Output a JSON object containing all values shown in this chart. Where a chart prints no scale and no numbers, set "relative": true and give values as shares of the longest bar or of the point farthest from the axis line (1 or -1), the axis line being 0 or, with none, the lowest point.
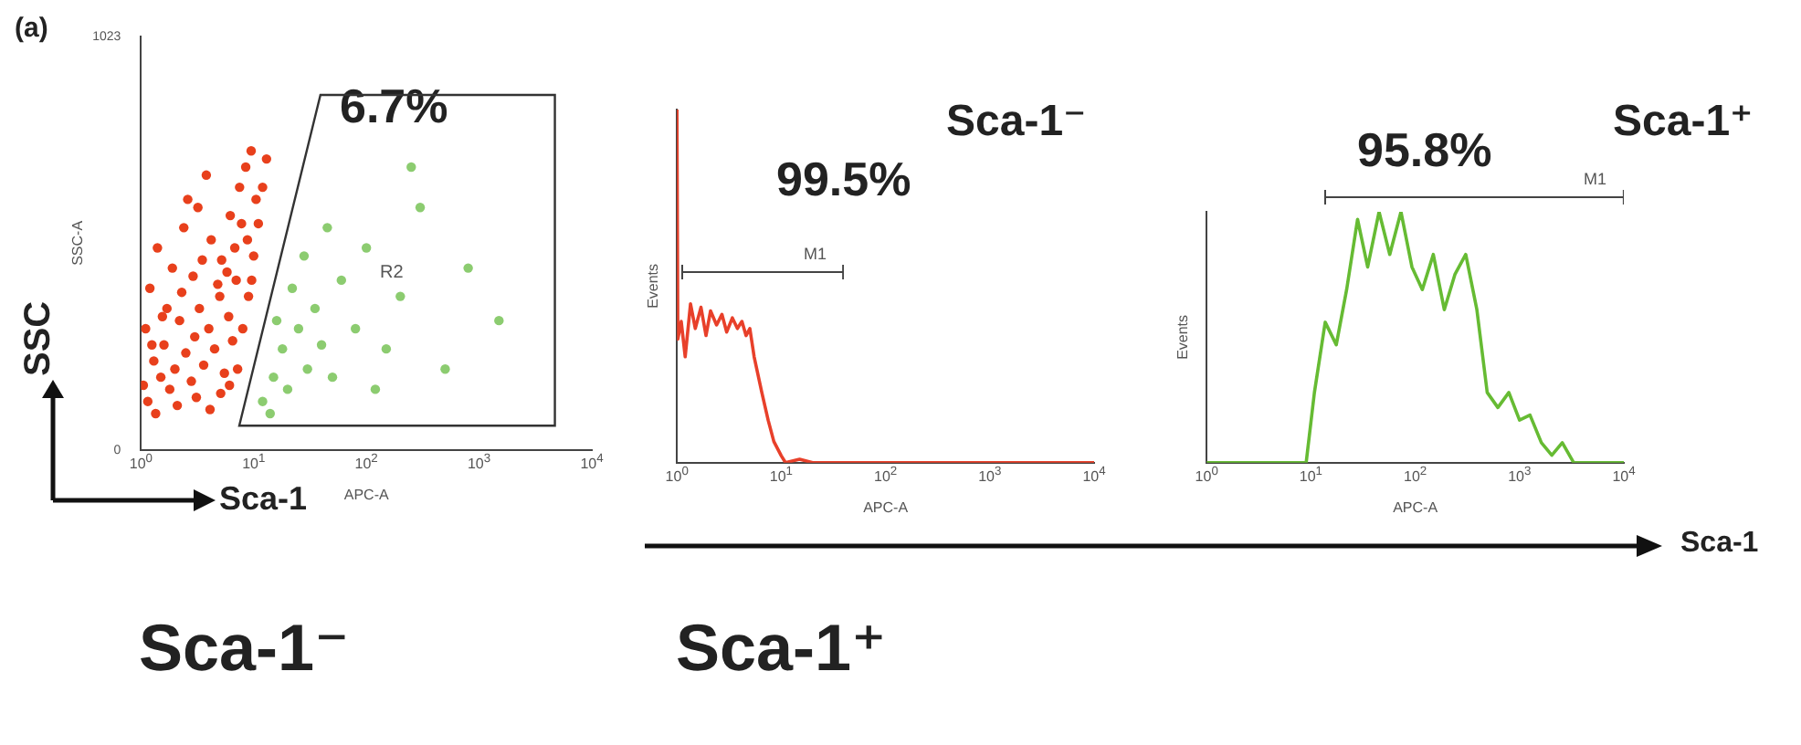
{
  "chart_data": [
    {
      "type": "scatter",
      "xlabel": "APC-A",
      "ylabel": "SSC-A",
      "log": "x",
      "xlim": [
        1,
        10000
      ],
      "ylim": [
        0,
        1023
      ],
      "xticks": [
        {
          "value": 1,
          "label": "10$^{0}$"
        },
        {
          "value": 10,
          "label": "10$^{1}$"
        },
        {
          "value": 100,
          "label": "10$^{2}$"
        },
        {
          "value": 1000,
          "label": "10$^{3}$"
        },
        {
          "value": 10000,
          "label": "10$^{4}$"
        }
      ],
      "yticks": [
        0,
        1023
      ],
      "grid": false,
      "legend": false,
      "marker": "circle",
      "annotations": [
        "(a)",
        "6.7%",
        "R2",
        "SSC",
        "Sca-1"
      ],
      "series": [
        {
          "color": "#e8401c",
          "x": [
            1.1,
            1.3,
            1.5,
            1.2,
            1.6,
            1.8,
            2,
            2.2,
            2.5,
            2.8,
            3,
            3.3,
            3.6,
            4,
            4.5,
            5,
            5.5,
            6,
            6.5,
            7,
            1.4,
            1.9,
            2.4,
            3.2,
            4.2,
            5.2,
            6.2,
            7.5,
            8.5,
            9.5,
            3.8,
            2.6,
            1.7,
            1.05,
            1.15,
            1.35,
            2.1,
            3.1,
            4.1,
            5.1,
            6.1,
            7.2,
            8,
            9,
            10,
            11,
            12,
            13,
            8.8,
            9.6,
            1.25,
            1.55,
            2.3,
            2.9,
            3.5,
            4.8,
            5.8,
            6.8,
            7.8,
            10.5
          ],
          "values": [
            300,
            220,
            180,
            400,
            260,
            150,
            200,
            320,
            240,
            170,
            280,
            350,
            210,
            300,
            250,
            380,
            190,
            330,
            270,
            420,
            500,
            450,
            550,
            600,
            520,
            470,
            580,
            650,
            700,
            740,
            680,
            620,
            350,
            160,
            120,
            90,
            110,
            130,
            100,
            140,
            160,
            200,
            300,
            380,
            480,
            560,
            650,
            720,
            520,
            420,
            260,
            330,
            390,
            430,
            470,
            410,
            440,
            500,
            560,
            620
          ]
        },
        {
          "color": "#8ccc70",
          "x": [
            12,
            15,
            18,
            14,
            20,
            25,
            30,
            22,
            35,
            40,
            50,
            60,
            80,
            100,
            150,
            200,
            300,
            500,
            800,
            1500,
            16,
            28,
            45,
            120,
            250
          ],
          "values": [
            120,
            180,
            250,
            90,
            150,
            300,
            200,
            400,
            350,
            260,
            180,
            420,
            300,
            500,
            250,
            380,
            600,
            200,
            450,
            320,
            320,
            480,
            550,
            150,
            700
          ]
        }
      ]
    },
    {
      "type": "line",
      "title": "Sca-1⁻",
      "xlabel": "APC-A",
      "ylabel": "Events",
      "log": "x",
      "xlim": [
        1,
        10000
      ],
      "relative": true,
      "xticks": [
        {
          "value": 1,
          "label": "10$^{0}$"
        },
        {
          "value": 10,
          "label": "10$^{1}$"
        },
        {
          "value": 100,
          "label": "10$^{2}$"
        },
        {
          "value": 1000,
          "label": "10$^{3}$"
        },
        {
          "value": 10000,
          "label": "10$^{4}$"
        }
      ],
      "grid": false,
      "legend": false,
      "marker": "none",
      "line_style": "solid",
      "annotations": [
        "99.5%",
        "M1"
      ],
      "series": [
        {
          "color": "#e8402a",
          "x": [
            1,
            1.02,
            1.1,
            1.2,
            1.35,
            1.5,
            1.7,
            1.9,
            2.1,
            2.4,
            2.7,
            3,
            3.4,
            3.8,
            4.2,
            4.6,
            5,
            5.5,
            6.5,
            7.5,
            8.5,
            10,
            11,
            15,
            20,
            100,
            1000,
            10000
          ],
          "values": [
            1,
            0.35,
            0.4,
            0.3,
            0.45,
            0.38,
            0.44,
            0.36,
            0.43,
            0.39,
            0.42,
            0.37,
            0.41,
            0.38,
            0.4,
            0.36,
            0.38,
            0.3,
            0.2,
            0.12,
            0.06,
            0.02,
            0,
            0.01,
            0,
            0,
            0,
            0
          ]
        }
      ]
    },
    {
      "type": "line",
      "title": "Sca-1⁺",
      "xlabel": "APC-A",
      "ylabel": "Events",
      "log": "x",
      "xlim": [
        1,
        10000
      ],
      "relative": true,
      "xticks": [
        {
          "value": 1,
          "label": "10$^{0}$"
        },
        {
          "value": 10,
          "label": "10$^{1}$"
        },
        {
          "value": 100,
          "label": "10$^{2}$"
        },
        {
          "value": 1000,
          "label": "10$^{3}$"
        },
        {
          "value": 10000,
          "label": "10$^{4}$"
        }
      ],
      "grid": false,
      "legend": false,
      "marker": "none",
      "line_style": "solid",
      "annotations": [
        "95.8%",
        "M1"
      ],
      "series": [
        {
          "color": "#66bb33",
          "x": [
            1,
            9,
            10.8,
            13.7,
            17.5,
            22,
            28,
            35,
            45,
            57,
            73,
            93,
            117,
            149,
            190,
            240,
            305,
            390,
            490,
            620,
            790,
            1000,
            1260,
            1620,
            2040,
            2570,
            3310,
            10000
          ],
          "values": [
            0,
            0,
            0.28,
            0.56,
            0.47,
            0.69,
            0.97,
            0.78,
            1,
            0.83,
            1,
            0.78,
            0.69,
            0.83,
            0.61,
            0.75,
            0.83,
            0.61,
            0.28,
            0.22,
            0.28,
            0.17,
            0.19,
            0.08,
            0.03,
            0.08,
            0,
            0
          ]
        }
      ]
    },
    {
      "type": "other",
      "annotations": [
        "Sca-1",
        "Sca-1⁻",
        "Sca-1⁺"
      ]
    }
  ]
}
